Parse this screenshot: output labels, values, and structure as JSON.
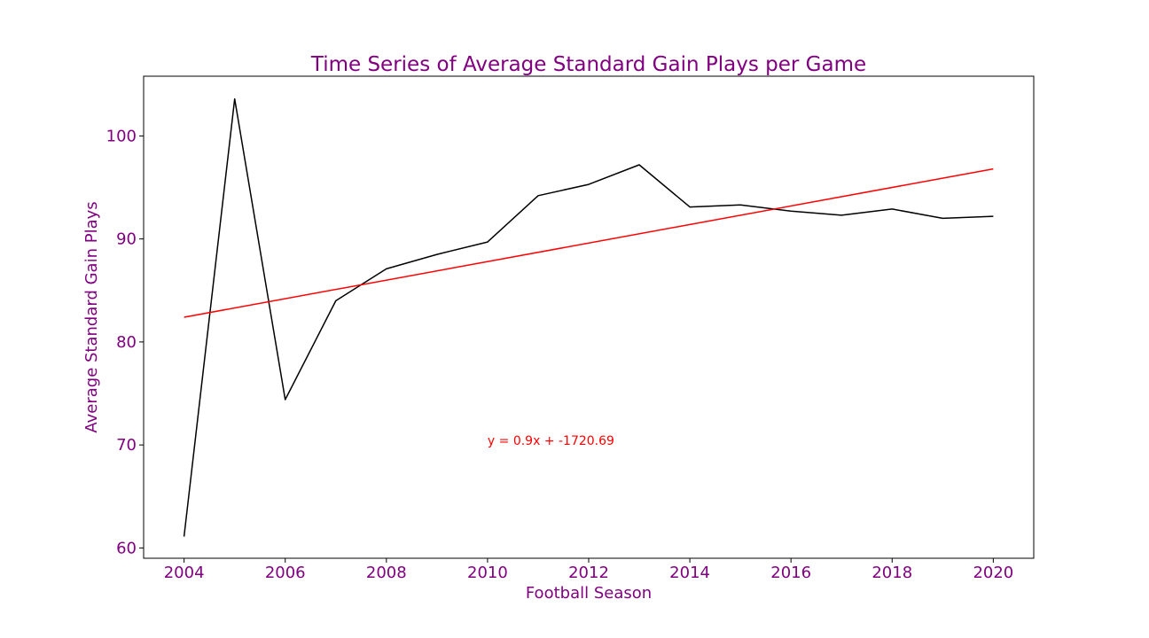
{
  "colors": {
    "text": "#800080",
    "series_line": "#000000",
    "trend_line": "#ff0000",
    "annotation": "#ff0000",
    "axes": "#000000",
    "background": "#ffffff"
  },
  "chart_data": {
    "type": "line",
    "title": "Time Series of Average Standard Gain Plays per Game",
    "xlabel": "Football Season",
    "ylabel": "Average Standard Gain Plays",
    "xlim": [
      2003.2,
      2020.8
    ],
    "ylim": [
      59.0,
      105.8
    ],
    "x_ticks": [
      2004,
      2006,
      2008,
      2010,
      2012,
      2014,
      2016,
      2018,
      2020
    ],
    "y_ticks": [
      60,
      70,
      80,
      90,
      100
    ],
    "grid": false,
    "series": [
      {
        "x": [
          2004,
          2005,
          2006,
          2007,
          2008,
          2009,
          2010,
          2011,
          2012,
          2013,
          2014,
          2015,
          2016,
          2017,
          2018,
          2019,
          2020
        ],
        "values": [
          61.1,
          103.6,
          74.4,
          84.0,
          87.1,
          88.5,
          89.7,
          94.2,
          95.3,
          97.2,
          93.1,
          93.3,
          92.7,
          92.3,
          92.9,
          92.0,
          92.2
        ],
        "color": "#000000"
      }
    ],
    "trend_line": {
      "x": [
        2004,
        2020
      ],
      "values": [
        82.4,
        96.8
      ],
      "color": "#ff0000"
    },
    "annotations": [
      {
        "text": "y = 0.9x + -1720.69",
        "x": 2010,
        "y": 70,
        "color": "#ff0000"
      }
    ]
  }
}
